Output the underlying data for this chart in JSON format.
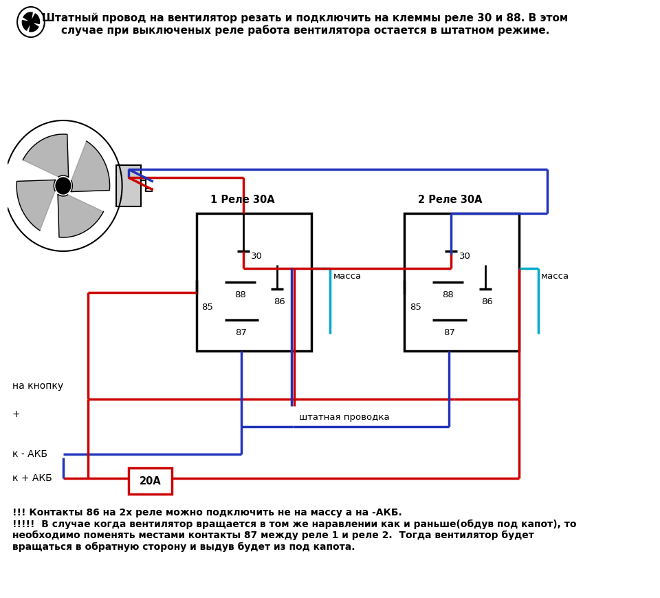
{
  "title_text": "Штатный провод на вентилятор резать и подключить на клеммы реле 30 и 88. В этом\nслучае при выключеных реле работа вентилятора остается в штатном режиме.",
  "relay1_label": "1 Реле 30А",
  "relay2_label": "2 Реле 30А",
  "fuse_label": "20А",
  "label_massa1": "масса",
  "label_massa2": "масса",
  "label_shtatnaya": "штатная проводка",
  "label_na_knopku": "на кнопку",
  "label_plus": "+",
  "label_k_akb_minus": "к - АКБ",
  "label_k_akb_plus": "к + АКБ",
  "note_text": "!!! Контакты 86 на 2х реле можно подключить не на массу а на -АКБ.\n!!!!!  В случае когда вентилятор вращается в том же наравлении как и раньше(обдув под капот), то\nнеобходимо поменять местами контакты 87 между реле 1 и реле 2.  Тогда вентилятор будет\nвращаться в обратную сторону и выдув будет из под капота.",
  "red": "#cc0000",
  "blue": "#2233bb",
  "cyan": "#00aacc",
  "black": "#000000",
  "white": "#ffffff",
  "r1x": 0.305,
  "r1y": 0.375,
  "r1w": 0.2,
  "r1h": 0.215,
  "r2x": 0.645,
  "r2y": 0.375,
  "r2w": 0.2,
  "r2h": 0.215
}
